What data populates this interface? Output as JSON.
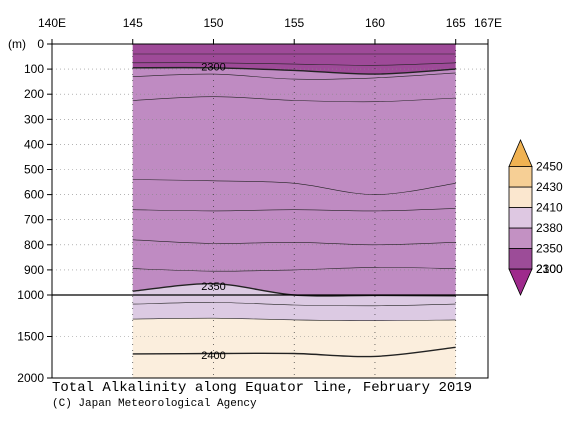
{
  "chart_data": {
    "type": "heatmap",
    "title": "Total Alkalinity along Equator line, February 2019",
    "credit": "(C) Japan Meteorological Agency",
    "x_axis": {
      "ticks": [
        "140E",
        "145",
        "150",
        "155",
        "160",
        "165",
        "167E"
      ],
      "tick_values": [
        140,
        145,
        150,
        155,
        160,
        165,
        167
      ],
      "range": [
        140,
        167
      ],
      "data_range": [
        145,
        165
      ]
    },
    "y_axis": {
      "unit_label": "(m)",
      "upper_ticks": [
        0,
        100,
        200,
        300,
        400,
        500,
        600,
        700,
        800,
        900,
        1000
      ],
      "lower_ticks": [
        1500,
        2000
      ],
      "range": [
        0,
        2000
      ],
      "scale_break_depth": 1000
    },
    "colorbar": {
      "levels": [
        "2100",
        "2300",
        "2350",
        "2380",
        "2410",
        "2430",
        "2450"
      ],
      "colors": [
        "#9e2a8c",
        "#9c4c98",
        "#c391c3",
        "#dec8e2",
        "#fbe7cf",
        "#f6cf95",
        "#f0b252"
      ]
    },
    "contour_labels": [
      {
        "text": "2300",
        "lon": 150,
        "depth": 90
      },
      {
        "text": "2350",
        "lon": 150,
        "depth": 965
      },
      {
        "text": "2400",
        "lon": 150,
        "depth": 1720
      }
    ],
    "bands": [
      {
        "color": "#9e4a98",
        "top": [
          0,
          0,
          0,
          0,
          0
        ],
        "bottom": [
          95,
          95,
          105,
          120,
          100
        ]
      },
      {
        "color": "#bf8bc2",
        "top": [
          95,
          95,
          105,
          120,
          100
        ],
        "bottom": [
          985,
          955,
          1000,
          1005,
          1010
        ]
      },
      {
        "color": "#dccae3",
        "top": [
          985,
          955,
          1000,
          1005,
          1010
        ],
        "bottom": [
          1290,
          1280,
          1300,
          1310,
          1300
        ]
      },
      {
        "color": "#fbeedd",
        "top": [
          1290,
          1280,
          1300,
          1310,
          1300
        ],
        "bottom": [
          2000,
          2000,
          2000,
          2000,
          2000
        ]
      }
    ],
    "section_lons": [
      145,
      150,
      155,
      160,
      165
    ],
    "contour_lines": [
      {
        "depth": [
          40,
          40,
          40,
          40,
          40
        ],
        "width": 0.6
      },
      {
        "depth": [
          75,
          75,
          80,
          85,
          75
        ],
        "width": 0.6
      },
      {
        "depth": [
          95,
          95,
          105,
          120,
          100
        ],
        "width": 1.4
      },
      {
        "depth": [
          130,
          120,
          140,
          135,
          115
        ],
        "width": 0.6
      },
      {
        "depth": [
          225,
          210,
          225,
          230,
          215
        ],
        "width": 0.6
      },
      {
        "depth": [
          540,
          545,
          555,
          600,
          555
        ],
        "width": 0.6
      },
      {
        "depth": [
          660,
          665,
          660,
          665,
          655
        ],
        "width": 0.6
      },
      {
        "depth": [
          780,
          795,
          790,
          800,
          790
        ],
        "width": 0.6
      },
      {
        "depth": [
          895,
          905,
          900,
          890,
          895
        ],
        "width": 0.6
      },
      {
        "depth": [
          985,
          955,
          1000,
          1005,
          1010
        ],
        "width": 1.4
      },
      {
        "depth": [
          1110,
          1090,
          1120,
          1130,
          1110
        ],
        "width": 0.6
      },
      {
        "depth": [
          1290,
          1280,
          1300,
          1310,
          1300
        ],
        "width": 0.6
      },
      {
        "depth": [
          1710,
          1705,
          1705,
          1740,
          1630
        ],
        "width": 1.4
      }
    ]
  }
}
